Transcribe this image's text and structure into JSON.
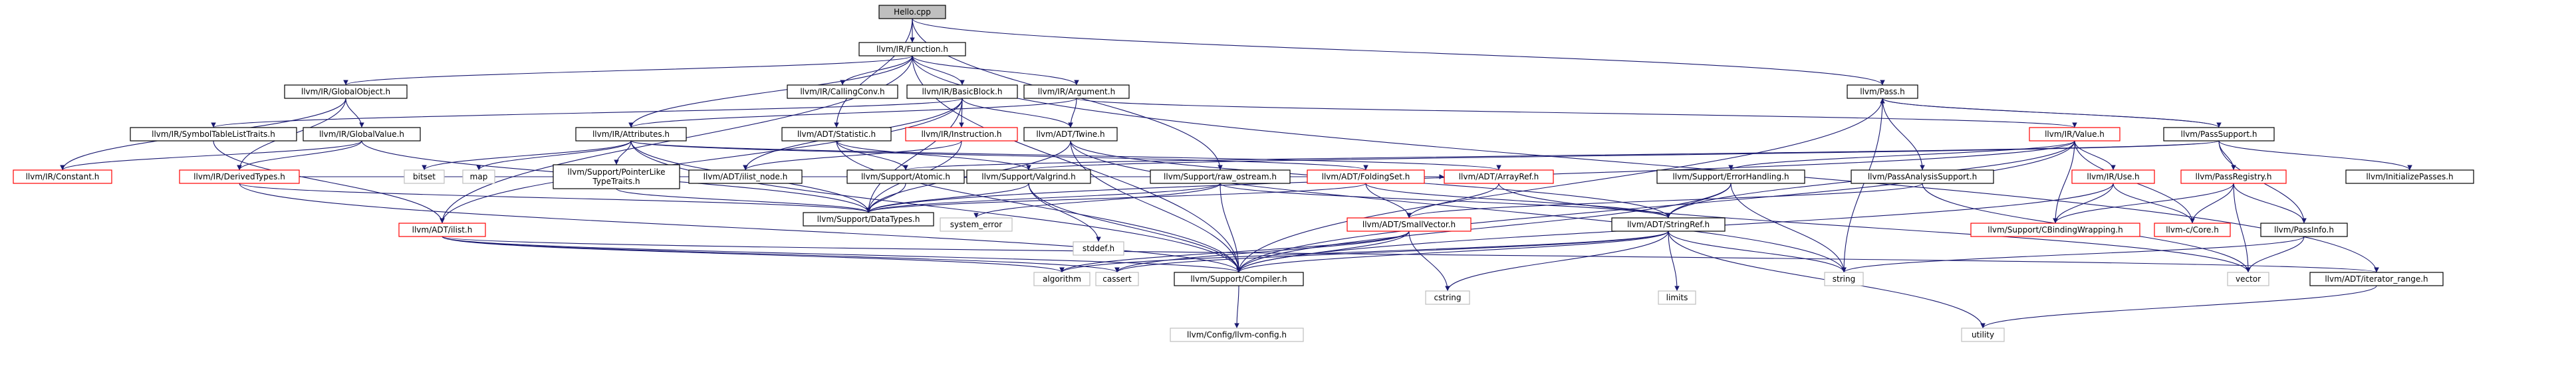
{
  "colors": {
    "edge": "#191970",
    "box_border": "#000000",
    "box_fill": "#ffffff",
    "root_fill": "#bfbfbf",
    "text": "#000000",
    "red": "#ff0000",
    "grey": "#bfbfbf",
    "grey_text": "#000000"
  },
  "nodes": [
    {
      "id": "hello",
      "label": "Hello.cpp",
      "style": "root"
    },
    {
      "id": "function",
      "label": "llvm/IR/Function.h",
      "style": "black"
    },
    {
      "id": "globalobject",
      "label": "llvm/IR/GlobalObject.h",
      "style": "black"
    },
    {
      "id": "callingconv",
      "label": "llvm/IR/CallingConv.h",
      "style": "black"
    },
    {
      "id": "basicblock",
      "label": "llvm/IR/BasicBlock.h",
      "style": "black"
    },
    {
      "id": "argument",
      "label": "llvm/IR/Argument.h",
      "style": "black"
    },
    {
      "id": "pass",
      "label": "llvm/Pass.h",
      "style": "black"
    },
    {
      "id": "symboltable",
      "label": "llvm/IR/SymbolTableListTraits.h",
      "style": "black"
    },
    {
      "id": "globalvalue",
      "label": "llvm/IR/GlobalValue.h",
      "style": "black"
    },
    {
      "id": "attributes",
      "label": "llvm/IR/Attributes.h",
      "style": "black"
    },
    {
      "id": "statistic",
      "label": "llvm/ADT/Statistic.h",
      "style": "black"
    },
    {
      "id": "instruction",
      "label": "llvm/IR/Instruction.h",
      "style": "red"
    },
    {
      "id": "twine",
      "label": "llvm/ADT/Twine.h",
      "style": "black"
    },
    {
      "id": "value",
      "label": "llvm/IR/Value.h",
      "style": "red"
    },
    {
      "id": "passsupport",
      "label": "llvm/PassSupport.h",
      "style": "black"
    },
    {
      "id": "constant",
      "label": "llvm/IR/Constant.h",
      "style": "red"
    },
    {
      "id": "derivedtypes",
      "label": "llvm/IR/DerivedTypes.h",
      "style": "red"
    },
    {
      "id": "bitset",
      "label": "bitset",
      "style": "grey"
    },
    {
      "id": "map",
      "label": "map",
      "style": "grey"
    },
    {
      "id": "pointerlike",
      "label": "llvm/Support/PointerLike\nTypeTraits.h",
      "style": "black"
    },
    {
      "id": "ilistnode",
      "label": "llvm/ADT/ilist_node.h",
      "style": "black"
    },
    {
      "id": "atomic",
      "label": "llvm/Support/Atomic.h",
      "style": "black"
    },
    {
      "id": "valgrind",
      "label": "llvm/Support/Valgrind.h",
      "style": "black"
    },
    {
      "id": "rawostream",
      "label": "llvm/Support/raw_ostream.h",
      "style": "black"
    },
    {
      "id": "foldingset",
      "label": "llvm/ADT/FoldingSet.h",
      "style": "red"
    },
    {
      "id": "arrayref",
      "label": "llvm/ADT/ArrayRef.h",
      "style": "red"
    },
    {
      "id": "errorhandling",
      "label": "llvm/Support/ErrorHandling.h",
      "style": "black"
    },
    {
      "id": "passanalysis",
      "label": "llvm/PassAnalysisSupport.h",
      "style": "black"
    },
    {
      "id": "use",
      "label": "llvm/IR/Use.h",
      "style": "red"
    },
    {
      "id": "passregistry",
      "label": "llvm/PassRegistry.h",
      "style": "red"
    },
    {
      "id": "initpasses",
      "label": "llvm/InitializePasses.h",
      "style": "black"
    },
    {
      "id": "datatypes",
      "label": "llvm/Support/DataTypes.h",
      "style": "black"
    },
    {
      "id": "ilist",
      "label": "llvm/ADT/ilist.h",
      "style": "red"
    },
    {
      "id": "systemerror",
      "label": "system_error",
      "style": "grey"
    },
    {
      "id": "stddef",
      "label": "stddef.h",
      "style": "grey"
    },
    {
      "id": "smallvector",
      "label": "llvm/ADT/SmallVector.h",
      "style": "red"
    },
    {
      "id": "stringref",
      "label": "llvm/ADT/StringRef.h",
      "style": "black"
    },
    {
      "id": "cbinding",
      "label": "llvm/Support/CBindingWrapping.h",
      "style": "red"
    },
    {
      "id": "llvmccore",
      "label": "llvm-c/Core.h",
      "style": "red"
    },
    {
      "id": "passinfo",
      "label": "llvm/PassInfo.h",
      "style": "black"
    },
    {
      "id": "algorithm",
      "label": "algorithm",
      "style": "grey"
    },
    {
      "id": "cassert",
      "label": "cassert",
      "style": "grey"
    },
    {
      "id": "compiler",
      "label": "llvm/Support/Compiler.h",
      "style": "black"
    },
    {
      "id": "cstring",
      "label": "cstring",
      "style": "grey"
    },
    {
      "id": "limits",
      "label": "limits",
      "style": "grey"
    },
    {
      "id": "string",
      "label": "string",
      "style": "grey"
    },
    {
      "id": "vector",
      "label": "vector",
      "style": "grey"
    },
    {
      "id": "iterrange",
      "label": "llvm/ADT/iterator_range.h",
      "style": "black"
    },
    {
      "id": "llvmconfig",
      "label": "llvm/Config/llvm-config.h",
      "style": "grey"
    },
    {
      "id": "utility",
      "label": "utility",
      "style": "grey"
    }
  ],
  "edges": [
    [
      "hello",
      "function"
    ],
    [
      "hello",
      "pass"
    ],
    [
      "hello",
      "rawostream"
    ],
    [
      "hello",
      "statistic"
    ],
    [
      "function",
      "globalobject"
    ],
    [
      "function",
      "callingconv"
    ],
    [
      "function",
      "basicblock"
    ],
    [
      "function",
      "argument"
    ],
    [
      "function",
      "attributes"
    ],
    [
      "function",
      "compiler"
    ],
    [
      "function",
      "iterrange"
    ],
    [
      "function",
      "ilist"
    ],
    [
      "globalobject",
      "globalvalue"
    ],
    [
      "globalobject",
      "derivedtypes"
    ],
    [
      "globalobject",
      "constant"
    ],
    [
      "basicblock",
      "symboltable"
    ],
    [
      "basicblock",
      "instruction"
    ],
    [
      "basicblock",
      "twine"
    ],
    [
      "basicblock",
      "ilistnode"
    ],
    [
      "basicblock",
      "datatypes"
    ],
    [
      "basicblock",
      "ilist"
    ],
    [
      "argument",
      "twine"
    ],
    [
      "argument",
      "value"
    ],
    [
      "argument",
      "attributes"
    ],
    [
      "pass",
      "passsupport"
    ],
    [
      "pass",
      "passanalysis"
    ],
    [
      "pass",
      "compiler"
    ],
    [
      "pass",
      "string"
    ],
    [
      "passsupport",
      "pass"
    ],
    [
      "passsupport",
      "passregistry"
    ],
    [
      "passsupport",
      "passinfo"
    ],
    [
      "passsupport",
      "initpasses"
    ],
    [
      "passsupport",
      "atomic"
    ],
    [
      "passsupport",
      "valgrind"
    ],
    [
      "symboltable",
      "ilist"
    ],
    [
      "globalvalue",
      "constant"
    ],
    [
      "globalvalue",
      "derivedtypes"
    ],
    [
      "globalvalue",
      "datatypes"
    ],
    [
      "attributes",
      "bitset"
    ],
    [
      "attributes",
      "map"
    ],
    [
      "attributes",
      "pointerlike"
    ],
    [
      "attributes",
      "arrayref"
    ],
    [
      "attributes",
      "foldingset"
    ],
    [
      "attributes",
      "datatypes"
    ],
    [
      "attributes",
      "compiler"
    ],
    [
      "statistic",
      "atomic"
    ],
    [
      "statistic",
      "valgrind"
    ],
    [
      "statistic",
      "compiler"
    ],
    [
      "instruction",
      "ilistnode"
    ],
    [
      "instruction",
      "datatypes"
    ],
    [
      "twine",
      "compiler"
    ],
    [
      "twine",
      "stringref"
    ],
    [
      "twine",
      "datatypes"
    ],
    [
      "twine",
      "string"
    ],
    [
      "value",
      "use"
    ],
    [
      "value",
      "cbinding"
    ],
    [
      "value",
      "llvmccore"
    ],
    [
      "value",
      "datatypes"
    ],
    [
      "value",
      "compiler"
    ],
    [
      "value",
      "stringref"
    ],
    [
      "value",
      "errorhandling"
    ],
    [
      "derivedtypes",
      "arrayref"
    ],
    [
      "derivedtypes",
      "datatypes"
    ],
    [
      "derivedtypes",
      "compiler"
    ],
    [
      "pointerlike",
      "datatypes"
    ],
    [
      "atomic",
      "datatypes"
    ],
    [
      "valgrind",
      "stddef"
    ],
    [
      "valgrind",
      "compiler"
    ],
    [
      "valgrind",
      "datatypes"
    ],
    [
      "rawostream",
      "datatypes"
    ],
    [
      "rawostream",
      "compiler"
    ],
    [
      "rawostream",
      "systemerror"
    ],
    [
      "rawostream",
      "stringref"
    ],
    [
      "foldingset",
      "smallvector"
    ],
    [
      "foldingset",
      "stringref"
    ],
    [
      "foldingset",
      "datatypes"
    ],
    [
      "arrayref",
      "smallvector"
    ],
    [
      "arrayref",
      "vector"
    ],
    [
      "errorhandling",
      "compiler"
    ],
    [
      "errorhandling",
      "string"
    ],
    [
      "errorhandling",
      "stringref"
    ],
    [
      "passanalysis",
      "vector"
    ],
    [
      "passanalysis",
      "smallvector"
    ],
    [
      "use",
      "compiler"
    ],
    [
      "use",
      "cbinding"
    ],
    [
      "use",
      "llvmccore"
    ],
    [
      "passregistry",
      "passinfo"
    ],
    [
      "passregistry",
      "llvmccore"
    ],
    [
      "passregistry",
      "cbinding"
    ],
    [
      "passregistry",
      "vector"
    ],
    [
      "passinfo",
      "vector"
    ],
    [
      "passinfo",
      "string"
    ],
    [
      "ilist",
      "iterrange"
    ],
    [
      "ilist",
      "algorithm"
    ],
    [
      "ilist",
      "cassert"
    ],
    [
      "ilist",
      "compiler"
    ],
    [
      "smallvector",
      "algorithm"
    ],
    [
      "smallvector",
      "cassert"
    ],
    [
      "smallvector",
      "compiler"
    ],
    [
      "smallvector",
      "cstring"
    ],
    [
      "stringref",
      "algorithm"
    ],
    [
      "stringref",
      "cassert"
    ],
    [
      "stringref",
      "compiler"
    ],
    [
      "stringref",
      "cstring"
    ],
    [
      "stringref",
      "limits"
    ],
    [
      "stringref",
      "string"
    ],
    [
      "stringref",
      "utility"
    ],
    [
      "compiler",
      "llvmconfig"
    ],
    [
      "iterrange",
      "utility"
    ]
  ]
}
